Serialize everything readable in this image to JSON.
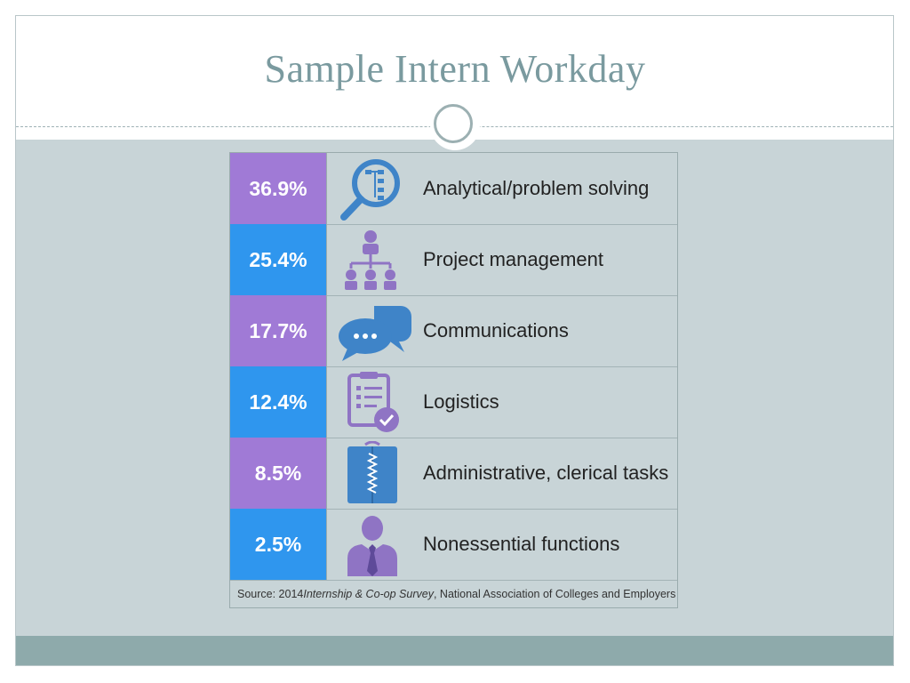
{
  "slide": {
    "title": "Sample Intern Workday"
  },
  "infographic": {
    "rows": [
      {
        "percent": "36.9%",
        "label": "Analytical/problem solving",
        "color": "purple",
        "icon": "magnifier-flowchart-icon"
      },
      {
        "percent": "25.4%",
        "label": "Project management",
        "color": "blue",
        "icon": "org-chart-icon"
      },
      {
        "percent": "17.7%",
        "label": "Communications",
        "color": "purple",
        "icon": "speech-bubbles-icon"
      },
      {
        "percent": "12.4%",
        "label": "Logistics",
        "color": "blue",
        "icon": "clipboard-check-icon"
      },
      {
        "percent": "8.5%",
        "label": "Administrative, clerical tasks",
        "color": "purple",
        "icon": "binder-icon"
      },
      {
        "percent": "2.5%",
        "label": "Nonessential functions",
        "color": "blue",
        "icon": "person-tie-icon"
      }
    ],
    "source": {
      "prefix": "Source: 2014 ",
      "italic": "Internship & Co-op Survey",
      "suffix": ", National Association of Colleges and Employers"
    }
  },
  "colors": {
    "purple": "#a07ad6",
    "blue": "#2f96ee",
    "icon_purple": "#8f74c4",
    "icon_blue": "#3f84c8",
    "background": "#c8d4d7",
    "footer": "#8eaaab",
    "title": "#7a9a9f"
  }
}
